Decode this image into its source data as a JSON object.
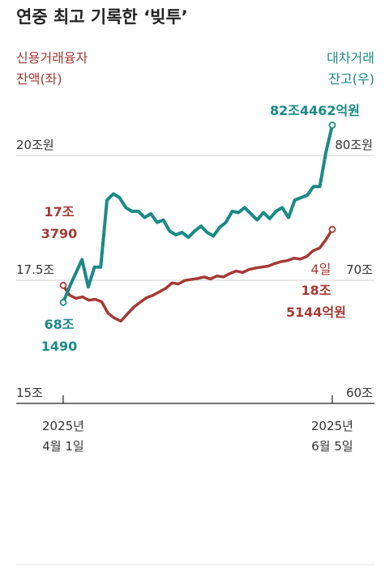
{
  "colors": {
    "credit": "#a33a34",
    "lending": "#1a8a86",
    "axis": "#222222",
    "grid": "#cfcfcf"
  },
  "header": {
    "title": "연중 최고 기록한 ‘빚투’"
  },
  "labels": {
    "credit_series_line1": "신용거래융자",
    "credit_series_line2": "잔액(좌)",
    "lending_series_line1": "대차거래",
    "lending_series_line2": "잔고(우)"
  },
  "annotations": {
    "lending_end": "82조4462억원",
    "credit_start_line1": "17조",
    "credit_start_line2": "3790",
    "lending_start_line1": "68조",
    "lending_start_line2": "1490",
    "credit_end_date": "4일",
    "credit_end_line1": "18조",
    "credit_end_line2": "5144억원"
  },
  "axes": {
    "left_ticks": [
      {
        "value": 20,
        "label": "20조원"
      },
      {
        "value": 17.5,
        "label": "17.5조"
      },
      {
        "value": 15,
        "label": "15조"
      }
    ],
    "right_ticks": [
      {
        "value": 80,
        "label": "80조원"
      },
      {
        "value": 70,
        "label": "70조"
      },
      {
        "value": 60,
        "label": "60조"
      }
    ],
    "start_date_line1": "2025년",
    "start_date_line2": "4월 1일",
    "end_date_line1": "2025년",
    "end_date_line2": "6월 5일"
  },
  "chart_data": {
    "type": "line",
    "x_range": [
      "2025-04-01",
      "2025-06-05"
    ],
    "left_ylim": [
      15,
      20
    ],
    "right_ylim": [
      60,
      80
    ],
    "series": [
      {
        "name": "신용거래융자 잔액(좌)",
        "axis": "left",
        "unit": "조원",
        "values": [
          17.38,
          17.18,
          17.12,
          17.15,
          17.08,
          17.1,
          17.05,
          16.82,
          16.72,
          16.66,
          16.8,
          16.94,
          17.04,
          17.13,
          17.18,
          17.25,
          17.32,
          17.43,
          17.41,
          17.48,
          17.5,
          17.52,
          17.55,
          17.51,
          17.57,
          17.55,
          17.62,
          17.67,
          17.64,
          17.7,
          17.73,
          17.75,
          17.77,
          17.82,
          17.86,
          17.88,
          17.93,
          17.91,
          17.96,
          18.08,
          18.13,
          18.3,
          18.51
        ]
      },
      {
        "name": "대차거래 잔고(우)",
        "axis": "right",
        "unit": "조원",
        "values": [
          68.15,
          69.4,
          70.5,
          71.6,
          69.4,
          71.0,
          71.0,
          76.4,
          76.9,
          76.6,
          75.8,
          75.5,
          75.5,
          75.0,
          75.3,
          74.6,
          74.8,
          73.9,
          73.6,
          73.8,
          73.4,
          73.9,
          74.3,
          73.8,
          73.5,
          74.2,
          74.6,
          75.5,
          75.4,
          75.8,
          75.3,
          74.8,
          75.4,
          74.9,
          75.5,
          75.8,
          75.0,
          76.4,
          76.6,
          76.8,
          77.5,
          77.5,
          80.3,
          82.45
        ]
      }
    ]
  }
}
